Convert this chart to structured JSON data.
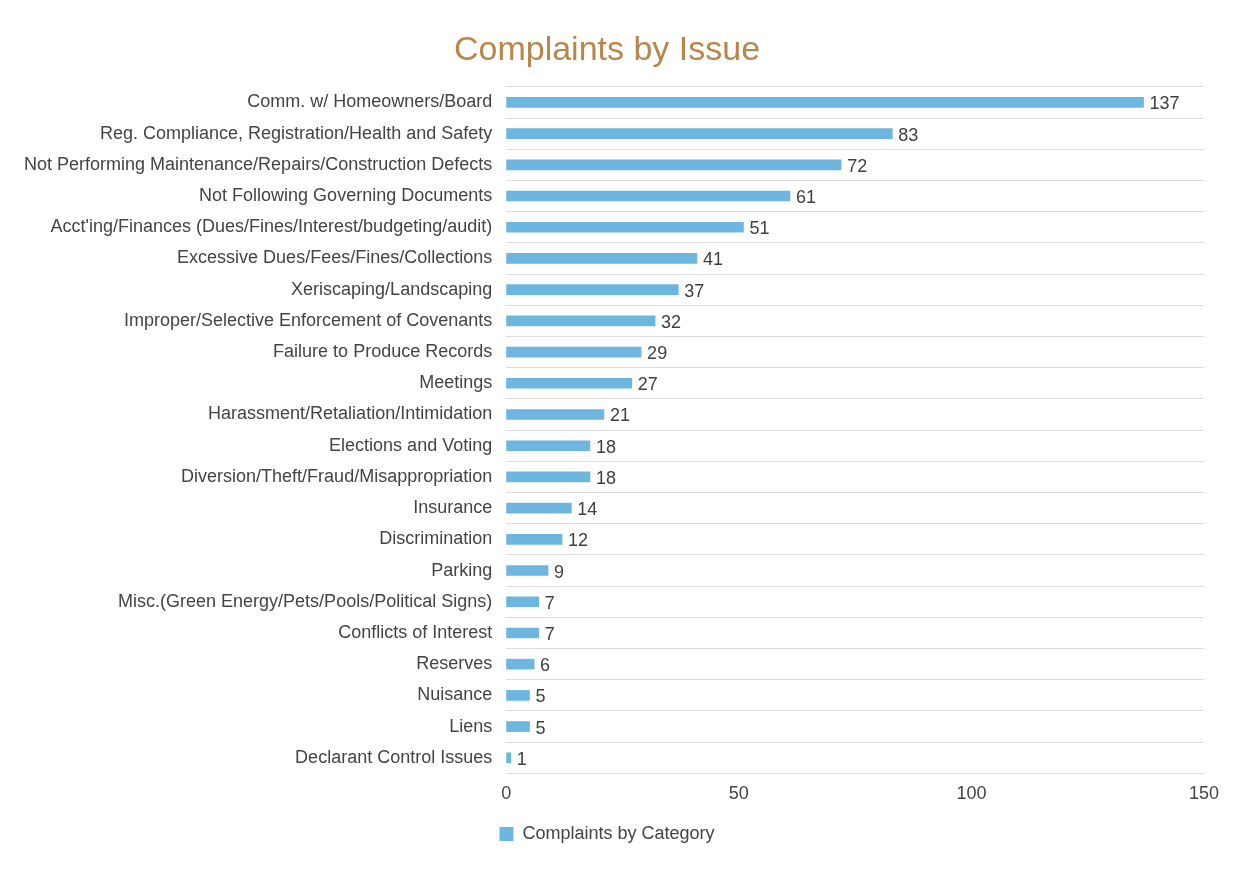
{
  "chart_data": {
    "type": "bar",
    "orientation": "horizontal",
    "title": "Complaints by Issue",
    "categories": [
      "Comm. w/ Homeowners/Board",
      "Reg. Compliance, Registration/Health and Safety",
      "Not Performing Maintenance/Repairs/Construction Defects",
      "Not Following Governing Documents",
      "Acct'ing/Finances (Dues/Fines/Interest/budgeting/audit)",
      "Excessive Dues/Fees/Fines/Collections",
      "Xeriscaping/Landscaping",
      "Improper/Selective Enforcement of Covenants",
      "Failure to Produce Records",
      "Meetings",
      "Harassment/Retaliation/Intimidation",
      "Elections and Voting",
      "Diversion/Theft/Fraud/Misappropriation",
      "Insurance",
      "Discrimination",
      "Parking",
      "Misc.(Green Energy/Pets/Pools/Political Signs)",
      "Conflicts of Interest",
      "Reserves",
      "Nuisance",
      "Liens",
      "Declarant Control Issues"
    ],
    "series": [
      {
        "name": "Complaints by Category",
        "color": "#6db6e0",
        "values": [
          137,
          83,
          72,
          61,
          51,
          41,
          37,
          32,
          29,
          27,
          21,
          18,
          18,
          14,
          12,
          9,
          7,
          7,
          6,
          5,
          5,
          1
        ]
      }
    ],
    "xlim": [
      0,
      150
    ],
    "xticks": [
      0,
      50,
      100,
      150
    ],
    "grid": "y",
    "legend": "bottom",
    "data_labels": true
  }
}
